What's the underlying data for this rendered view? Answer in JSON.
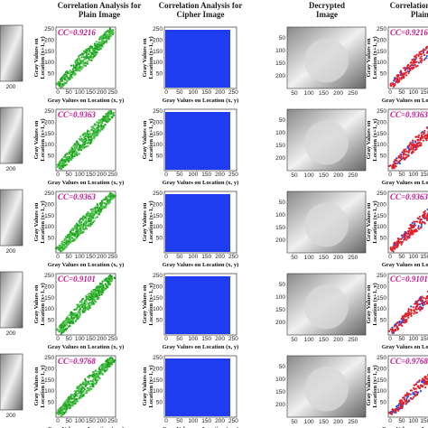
{
  "headers": {
    "plain_corr": [
      "Correlation Analysis for",
      "Plain Image"
    ],
    "cipher_corr": [
      "Correlation Analysis for",
      "Cipher Image"
    ],
    "decrypted": [
      "Decrypted",
      "Image"
    ],
    "plain_corr_right": [
      "Correlation Analysis for",
      "Plain Image"
    ]
  },
  "axis_labels": {
    "x": "Gray Values on Location (x, y)",
    "y": [
      "Gray Values on",
      "Location (x+1, y)"
    ]
  },
  "scatter_xticks": [
    "0",
    "50",
    "100",
    "150",
    "200",
    "250"
  ],
  "scatter_yticks": [
    "50",
    "100",
    "150",
    "200",
    "250"
  ],
  "image_xticks": [
    "50",
    "100",
    "150",
    "200",
    "250"
  ],
  "image_yticks": [
    "50",
    "100",
    "150",
    "200"
  ],
  "left_tick": "200",
  "cc": [
    "CC=0.9216",
    "CC=0.9363",
    "CC=0.9363",
    "CC=0.9101",
    "CC=0.9768"
  ]
}
